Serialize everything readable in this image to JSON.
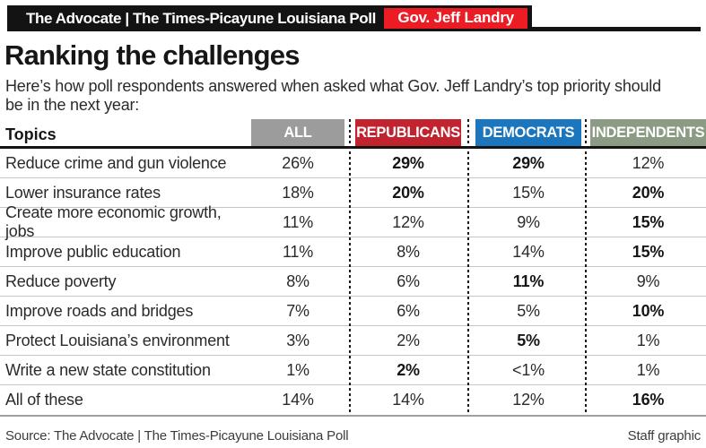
{
  "masthead": {
    "brand": "The Advocate | The Times-Picayune Louisiana Poll",
    "badge": "Gov. Jeff Landry",
    "badge_color": "#ec1c24",
    "bar_color": "#131313"
  },
  "subtitle": "Here’s how poll respondents answered when asked what Gov. Jeff Landry’s top priority should\nbe in the next year:",
  "chart_data": {
    "type": "table",
    "title": "Ranking the challenges",
    "topic_header": "Topics",
    "columns": [
      {
        "label": "ALL",
        "color": "#9c9c9c"
      },
      {
        "label": "REPUBLICANS",
        "color": "#c1242e"
      },
      {
        "label": "DEMOCRATS",
        "color": "#1b76bd"
      },
      {
        "label": "INDEPENDENTS",
        "color": "#8c9c84"
      }
    ],
    "rows": [
      {
        "topic": "Reduce crime and gun violence",
        "values": [
          "26%",
          "29%",
          "29%",
          "12%"
        ],
        "bold": [
          false,
          true,
          true,
          false
        ]
      },
      {
        "topic": "Lower insurance rates",
        "values": [
          "18%",
          "20%",
          "15%",
          "20%"
        ],
        "bold": [
          false,
          true,
          false,
          true
        ]
      },
      {
        "topic": "Create more economic growth, jobs",
        "values": [
          "11%",
          "12%",
          "9%",
          "15%"
        ],
        "bold": [
          false,
          false,
          false,
          true
        ]
      },
      {
        "topic": "Improve public education",
        "values": [
          "11%",
          "8%",
          "14%",
          "15%"
        ],
        "bold": [
          false,
          false,
          false,
          true
        ]
      },
      {
        "topic": "Reduce poverty",
        "values": [
          "8%",
          "6%",
          "11%",
          "9%"
        ],
        "bold": [
          false,
          false,
          true,
          false
        ]
      },
      {
        "topic": "Improve roads and bridges",
        "values": [
          "7%",
          "6%",
          "5%",
          "10%"
        ],
        "bold": [
          false,
          false,
          false,
          true
        ]
      },
      {
        "topic": "Protect Louisiana’s environment",
        "values": [
          "3%",
          "2%",
          "5%",
          "1%"
        ],
        "bold": [
          false,
          false,
          true,
          false
        ]
      },
      {
        "topic": "Write a new state constitution",
        "values": [
          "1%",
          "2%",
          "<1%",
          "1%"
        ],
        "bold": [
          false,
          true,
          false,
          false
        ]
      },
      {
        "topic": "All of these",
        "values": [
          "14%",
          "14%",
          "12%",
          "16%"
        ],
        "bold": [
          false,
          false,
          false,
          true
        ]
      }
    ]
  },
  "footer": {
    "source": "Source: The Advocate | The Times-Picayune Louisiana Poll",
    "credit": "Staff graphic"
  }
}
